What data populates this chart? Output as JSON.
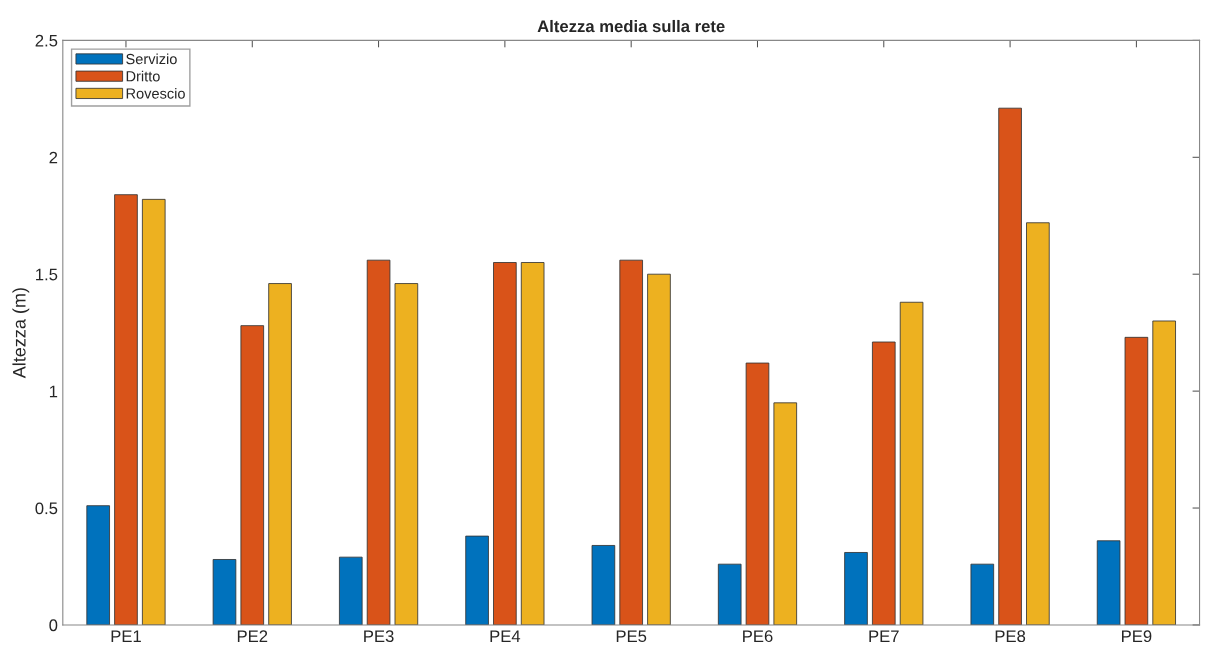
{
  "chart_data": {
    "type": "bar",
    "title": "Altezza media sulla rete",
    "ylabel": "Altezza (m)",
    "categories": [
      "PE1",
      "PE2",
      "PE3",
      "PE4",
      "PE5",
      "PE6",
      "PE7",
      "PE8",
      "PE9"
    ],
    "series": [
      {
        "name": "Servizio",
        "color": "#0072bd",
        "values": [
          0.51,
          0.28,
          0.29,
          0.38,
          0.34,
          0.26,
          0.31,
          0.26,
          0.36
        ]
      },
      {
        "name": "Dritto",
        "color": "#d95319",
        "values": [
          1.84,
          1.28,
          1.56,
          1.55,
          1.56,
          1.12,
          1.21,
          2.21,
          1.23
        ]
      },
      {
        "name": "Rovescio",
        "color": "#edb120",
        "values": [
          1.82,
          1.46,
          1.46,
          1.55,
          1.5,
          0.95,
          1.38,
          1.72,
          1.3
        ]
      }
    ],
    "ylim": [
      0,
      2.5
    ],
    "yticks": [
      0,
      0.5,
      1,
      1.5,
      2,
      2.5
    ],
    "grid": false,
    "legend": "top left"
  }
}
